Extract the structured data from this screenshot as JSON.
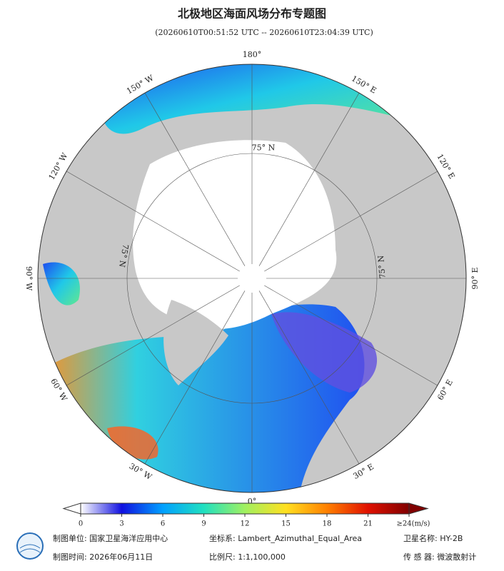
{
  "header": {
    "title": "北极地区海面风场分布专题图",
    "subtitle": "(20260610T00:51:52 UTC -- 20260610T23:04:39 UTC)"
  },
  "map": {
    "meridians": [
      {
        "value": 180,
        "label": "180°"
      },
      {
        "value": 150,
        "label": "150° E"
      },
      {
        "value": 120,
        "label": "120° E"
      },
      {
        "value": 90,
        "label": "90° E"
      },
      {
        "value": 60,
        "label": "60° E"
      },
      {
        "value": 30,
        "label": "30° E"
      },
      {
        "value": 0,
        "label": "0°"
      },
      {
        "value": -30,
        "label": "30° W"
      },
      {
        "value": -60,
        "label": "60° W"
      },
      {
        "value": -90,
        "label": "90° W"
      },
      {
        "value": -120,
        "label": "120° W"
      },
      {
        "value": -150,
        "label": "150° W"
      }
    ],
    "parallel": {
      "value": 75,
      "label": "75° N"
    }
  },
  "colorbar": {
    "ticks": [
      0,
      3,
      6,
      9,
      12,
      15,
      18,
      21,
      {
        "value": 24,
        "label": "≥24(m/s)"
      }
    ],
    "colors": [
      "#ffffff",
      "#1010e0",
      "#00a0ff",
      "#20e0c0",
      "#a0f060",
      "#ffe020",
      "#ff8000",
      "#e01000",
      "#800000"
    ]
  },
  "footer": {
    "unit": "制图单位: 国家卫星海洋应用中心",
    "crs": "坐标系: Lambert_Azimuthal_Equal_Area",
    "satellite": "卫星名称: HY-2B",
    "date": "制图时间: 2026年06月11日",
    "scale": "比例尺: 1:1,100,000",
    "sensor": "传 感 器: 微波散射计"
  }
}
